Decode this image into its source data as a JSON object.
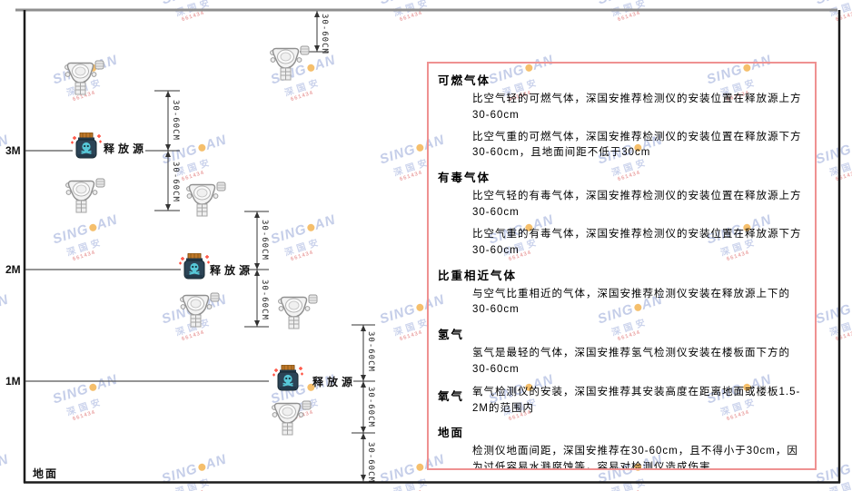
{
  "diagram": {
    "height_markers": [
      "3M",
      "2M",
      "1M"
    ],
    "ground_label": "地面",
    "source_label": "释放源",
    "dim_label": "30-60CM"
  },
  "watermark": {
    "brand_prefix": "SING",
    "brand_suffix": "AN",
    "brand_cn": "深国安",
    "code": "661434"
  },
  "panel": {
    "border_color": "#ef9191",
    "sections": [
      {
        "heading": "可燃气体",
        "paragraphs": [
          "比空气轻的可燃气体，深国安推荐检测仪的安装位置在释放源上方30-60cm",
          "比空气重的可燃气体，深国安推荐检测仪的安装位置在释放源下方30-60cm，且地面间距不低于30cm"
        ]
      },
      {
        "heading": "有毒气体",
        "paragraphs": [
          "比空气轻的有毒气体，深国安推荐检测仪的安装位置在释放源上方30-60cm",
          "比空气重的有毒气体，深国安推荐检测仪的安装位置在释放源下方30-60cm"
        ]
      },
      {
        "heading": "比重相近气体",
        "paragraphs": [
          "与空气比重相近的气体，深国安推荐检测仪安装在释放源上下的30-60cm"
        ]
      },
      {
        "heading": "氢气",
        "paragraphs": [
          "氢气是最轻的气体，深国安推荐氢气检测仪安装在楼板面下方的30-60cm"
        ]
      },
      {
        "heading": "氧气",
        "inline": true,
        "paragraphs": [
          "氧气检测仪的安装，深国安推荐其安装高度在距离地面或楼板1.5-2M的范围内"
        ]
      },
      {
        "heading": "地面",
        "paragraphs": [
          "检测仪地面间距，深国安推荐在30-60cm，且不得小于30cm，因为过低容易水溅腐蚀等，容易对检测仪造成伤害"
        ]
      }
    ]
  },
  "colors": {
    "wall": "#1c1c1c",
    "ceiling": "#8f8f8f",
    "dimension": "#333333",
    "source_body": "#2c4456",
    "source_cap": "#c07828",
    "source_skull": "#57c8d8",
    "sparkle": "#ff5040"
  }
}
